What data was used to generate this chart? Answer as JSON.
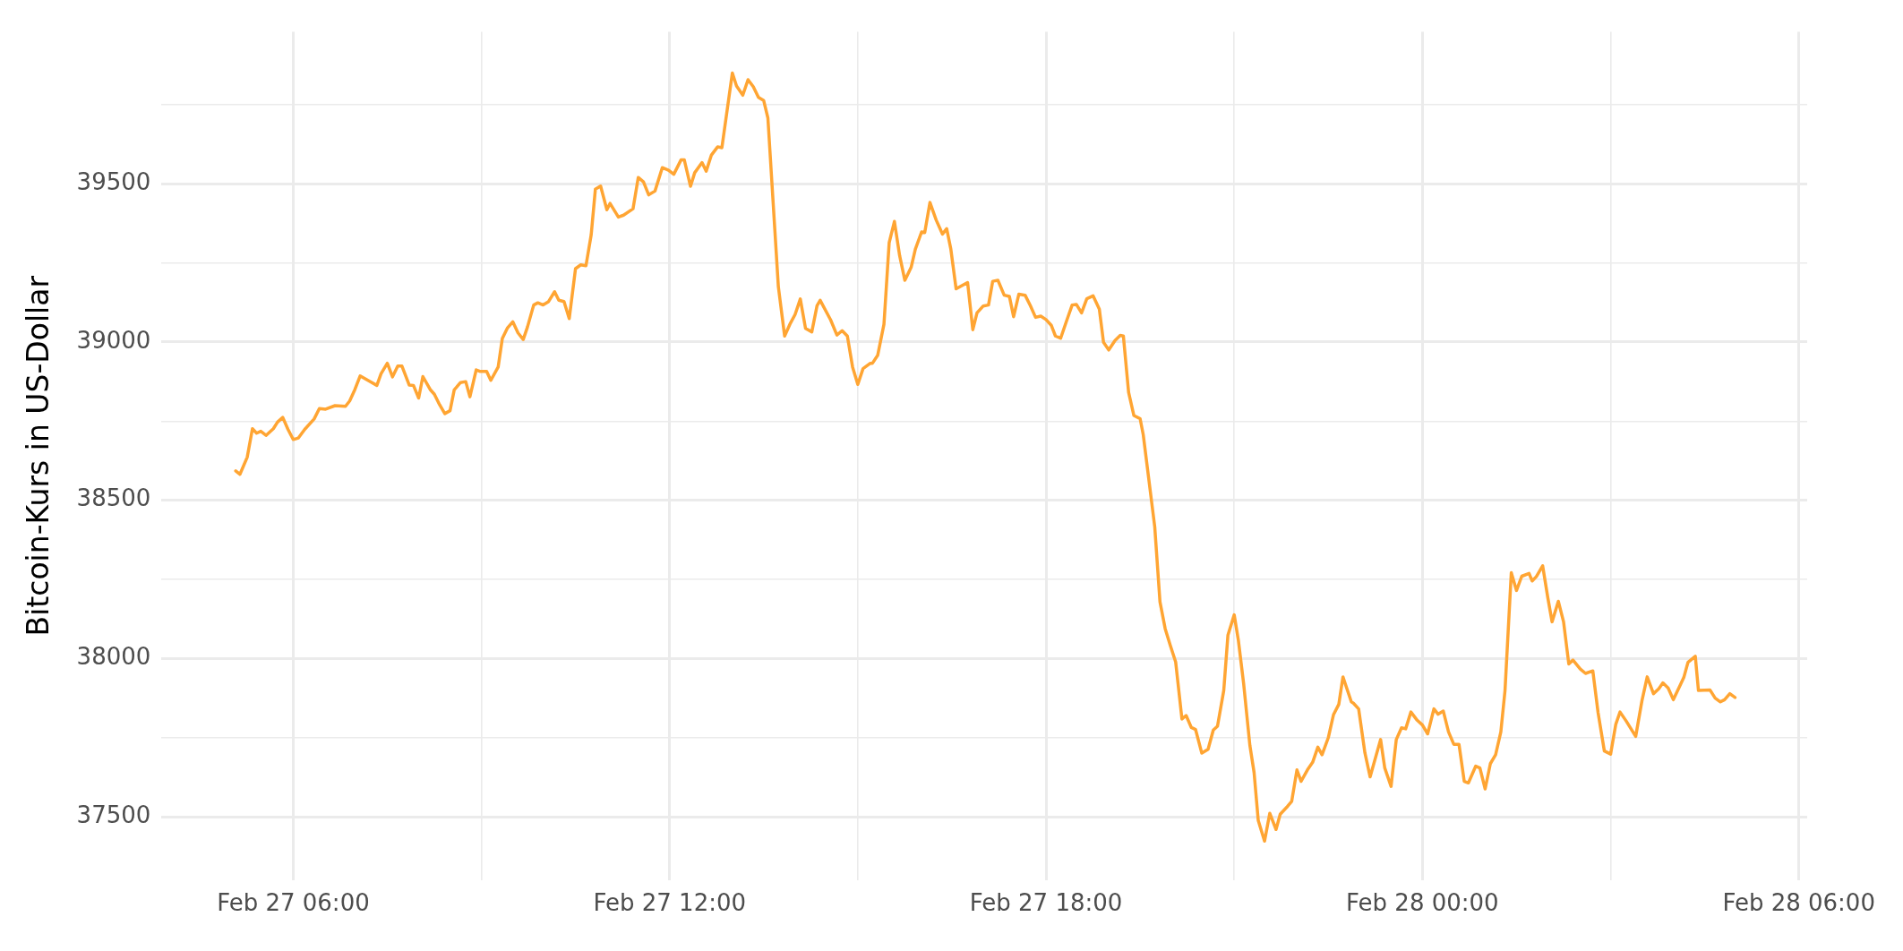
{
  "chart_data": {
    "type": "line",
    "ylabel": "Bitcoin-Kurs in US-Dollar",
    "xlim": [
      "--02-27T03:54",
      "--02-28T06:08"
    ],
    "xticks": [
      {
        "value": "--02-27T06:00",
        "label": "Feb 27 06:00"
      },
      {
        "value": "--02-27T09:00",
        "label": null
      },
      {
        "value": "--02-27T12:00",
        "label": "Feb 27 12:00"
      },
      {
        "value": "--02-27T15:00",
        "label": null
      },
      {
        "value": "--02-27T18:00",
        "label": "Feb 27 18:00"
      },
      {
        "value": "--02-27T21:00",
        "label": null
      },
      {
        "value": "--02-28T00:00",
        "label": "Feb 28 00:00"
      },
      {
        "value": "--02-28T03:00",
        "label": null
      },
      {
        "value": "--02-28T06:00",
        "label": "Feb 28 06:00"
      }
    ],
    "ylim": [
      37300,
      39980
    ],
    "yticks": [
      37500,
      {
        "value": 37750,
        "label": null
      },
      38000,
      {
        "value": 38250,
        "label": null
      },
      38500,
      {
        "value": 38750,
        "label": null
      },
      39000,
      {
        "value": 39250,
        "label": null
      },
      39500,
      {
        "value": 39750,
        "label": null
      }
    ],
    "grid": true,
    "legend": false,
    "marker": "none",
    "line_style": "solid",
    "series": [
      {
        "color": "#ffa533",
        "x": [
          "--02-27T05:05",
          "--02-27T05:09",
          "--02-27T05:16",
          "--02-27T05:21",
          "--02-27T05:25",
          "--02-27T05:29",
          "--02-27T05:34",
          "--02-27T05:41",
          "--02-27T05:45",
          "--02-27T05:50",
          "--02-27T05:55",
          "--02-27T06:00",
          "--02-27T06:05",
          "--02-27T06:11",
          "--02-27T06:20",
          "--02-27T06:25",
          "--02-27T06:31",
          "--02-27T06:40",
          "--02-27T06:50",
          "--02-27T06:54",
          "--02-27T06:59",
          "--02-27T07:04",
          "--02-27T07:13",
          "--02-27T07:20",
          "--02-27T07:24",
          "--02-27T07:30",
          "--02-27T07:35",
          "--02-27T07:40",
          "--02-27T07:44",
          "--02-27T07:51",
          "--02-27T07:55",
          "--02-27T08:00",
          "--02-27T08:04",
          "--02-27T08:11",
          "--02-27T08:15",
          "--02-27T08:20",
          "--02-27T08:25",
          "--02-27T08:30",
          "--02-27T08:34",
          "--02-27T08:40",
          "--02-27T08:45",
          "--02-27T08:49",
          "--02-27T08:55",
          "--02-27T08:59",
          "--02-27T09:05",
          "--02-27T09:09",
          "--02-27T09:16",
          "--02-27T09:20",
          "--02-27T09:25",
          "--02-27T09:30",
          "--02-27T09:35",
          "--02-27T09:40",
          "--02-27T09:44",
          "--02-27T09:50",
          "--02-27T09:54",
          "--02-27T09:59",
          "--02-27T10:04",
          "--02-27T10:10",
          "--02-27T10:14",
          "--02-27T10:19",
          "--02-27T10:24",
          "--02-27T10:30",
          "--02-27T10:35",
          "--02-27T10:40",
          "--02-27T10:45",
          "--02-27T10:49",
          "--02-27T10:54",
          "--02-27T11:00",
          "--02-27T11:03",
          "--02-27T11:11",
          "--02-27T11:16",
          "--02-27T11:25",
          "--02-27T11:30",
          "--02-27T11:35",
          "--02-27T11:40",
          "--02-27T11:46",
          "--02-27T11:53",
          "--02-27T11:59",
          "--02-27T12:04",
          "--02-27T12:11",
          "--02-27T12:14",
          "--02-27T12:20",
          "--02-27T12:24",
          "--02-27T12:31",
          "--02-27T12:35",
          "--02-27T12:40",
          "--02-27T12:46",
          "--02-27T12:50",
          "--02-27T13:00",
          "--02-27T13:04",
          "--02-27T13:10",
          "--02-27T13:15",
          "--02-27T13:20",
          "--02-27T13:25",
          "--02-27T13:30",
          "--02-27T13:34",
          "--02-27T13:44",
          "--02-27T13:50",
          "--02-27T13:55",
          "--02-27T14:00",
          "--02-27T14:05",
          "--02-27T14:10",
          "--02-27T14:16",
          "--02-27T14:21",
          "--02-27T14:24",
          "--02-27T14:34",
          "--02-27T14:40",
          "--02-27T14:45",
          "--02-27T14:50",
          "--02-27T14:55",
          "--02-27T15:00",
          "--02-27T15:05",
          "--02-27T15:12",
          "--02-27T15:14",
          "--02-27T15:19",
          "--02-27T15:25",
          "--02-27T15:30",
          "--02-27T15:35",
          "--02-27T15:40",
          "--02-27T15:45",
          "--02-27T15:51",
          "--02-27T15:55",
          "--02-27T16:01",
          "--02-27T16:04",
          "--02-27T16:09",
          "--02-27T16:15",
          "--02-27T16:21",
          "--02-27T16:25",
          "--02-27T16:29",
          "--02-27T16:34",
          "--02-27T16:45",
          "--02-27T16:50",
          "--02-27T16:54",
          "--02-27T17:00",
          "--02-27T17:05",
          "--02-27T17:09",
          "--02-27T17:14",
          "--02-27T17:20",
          "--02-27T17:25",
          "--02-27T17:29",
          "--02-27T17:34",
          "--02-27T17:40",
          "--02-27T17:45",
          "--02-27T17:50",
          "--02-27T17:55",
          "--02-27T18:00",
          "--02-27T18:05",
          "--02-27T18:09",
          "--02-27T18:14",
          "--02-27T18:20",
          "--02-27T18:25",
          "--02-27T18:29",
          "--02-27T18:34",
          "--02-27T18:39",
          "--02-27T18:45",
          "--02-27T18:51",
          "--02-27T18:55",
          "--02-27T19:00",
          "--02-27T19:06",
          "--02-27T19:11",
          "--02-27T19:14",
          "--02-27T19:19",
          "--02-27T19:24",
          "--02-27T19:30",
          "--02-27T19:33",
          "--02-27T19:44",
          "--02-27T19:49",
          "--02-27T19:54",
          "--02-27T19:59",
          "--02-27T20:04",
          "--02-27T20:10",
          "--02-27T20:14",
          "--02-27T20:19",
          "--02-27T20:23",
          "--02-27T20:29",
          "--02-27T20:35",
          "--02-27T20:40",
          "--02-27T20:44",
          "--02-27T20:50",
          "--02-27T20:54",
          "--02-27T21:00",
          "--02-27T21:04",
          "--02-27T21:09",
          "--02-27T21:15",
          "--02-27T21:19",
          "--02-27T21:23",
          "--02-27T21:29",
          "--02-27T21:34",
          "--02-27T21:40",
          "--02-27T21:44",
          "--02-27T21:51",
          "--02-27T21:55",
          "--02-27T22:00",
          "--02-27T22:04",
          "--02-27T22:10",
          "--02-27T22:15",
          "--02-27T22:20",
          "--02-27T22:24",
          "--02-27T22:30",
          "--02-27T22:35",
          "--02-27T22:40",
          "--02-27T22:44",
          "--02-27T22:52",
          "--02-27T22:54",
          "--02-27T22:59",
          "--02-27T23:05",
          "--02-27T23:10",
          "--02-27T23:20",
          "--02-27T23:24",
          "--02-27T23:30",
          "--02-27T23:35",
          "--02-27T23:40",
          "--02-27T23:44",
          "--02-27T23:49",
          "--02-27T23:55",
          "--02-28T00:00",
          "--02-28T00:05",
          "--02-28T00:11",
          "--02-28T00:15",
          "--02-28T00:20",
          "--02-28T00:25",
          "--02-28T00:30",
          "--02-28T00:35",
          "--02-28T00:40",
          "--02-28T00:44",
          "--02-28T00:51",
          "--02-28T00:55",
          "--02-28T01:00",
          "--02-28T01:05",
          "--02-28T01:10",
          "--02-28T01:15",
          "--02-28T01:19",
          "--02-28T01:25",
          "--02-28T01:30",
          "--02-28T01:35",
          "--02-28T01:42",
          "--02-28T01:45",
          "--02-28T01:49",
          "--02-28T01:55",
          "--02-28T02:00",
          "--02-28T02:04",
          "--02-28T02:10",
          "--02-28T02:15",
          "--02-28T02:20",
          "--02-28T02:24",
          "--02-28T02:31",
          "--02-28T02:36",
          "--02-28T02:43",
          "--02-28T02:48",
          "--02-28T02:54",
          "--02-28T03:00",
          "--02-28T03:05",
          "--02-28T03:09",
          "--02-28T03:15",
          "--02-28T03:24",
          "--02-28T03:30",
          "--02-28T03:35",
          "--02-28T03:41",
          "--02-28T03:46",
          "--02-28T03:50",
          "--02-28T03:55",
          "--02-28T04:00",
          "--02-28T04:10",
          "--02-28T04:14",
          "--02-28T04:21",
          "--02-28T04:24",
          "--02-28T04:35",
          "--02-28T04:40",
          "--02-28T04:45",
          "--02-28T04:49",
          "--02-28T04:54",
          "--02-28T04:59"
        ],
        "values": [
          38593,
          38582,
          38636,
          38726,
          38712,
          38718,
          38705,
          38726,
          38747,
          38762,
          38724,
          38692,
          38697,
          38724,
          38757,
          38790,
          38788,
          38799,
          38797,
          38814,
          38850,
          38893,
          38876,
          38863,
          38900,
          38933,
          38890,
          38924,
          38924,
          38864,
          38863,
          38823,
          38891,
          38850,
          38835,
          38802,
          38774,
          38783,
          38849,
          38872,
          38875,
          38827,
          38912,
          38907,
          38907,
          38879,
          38921,
          39011,
          39045,
          39064,
          39029,
          39008,
          39047,
          39117,
          39124,
          39117,
          39127,
          39159,
          39132,
          39128,
          39074,
          39232,
          39244,
          39241,
          39339,
          39483,
          39493,
          39418,
          39438,
          39395,
          39401,
          39421,
          39520,
          39506,
          39465,
          39477,
          39551,
          39543,
          39530,
          39576,
          39576,
          39492,
          39535,
          39567,
          39540,
          39591,
          39617,
          39614,
          39850,
          39809,
          39780,
          39829,
          39807,
          39773,
          39763,
          39708,
          39175,
          39019,
          39056,
          39087,
          39136,
          39043,
          39032,
          39115,
          39132,
          39070,
          39022,
          39036,
          39019,
          38921,
          38866,
          38916,
          38933,
          38933,
          38958,
          39056,
          39314,
          39381,
          39273,
          39195,
          39236,
          39293,
          39348,
          39346,
          39441,
          39385,
          39341,
          39358,
          39293,
          39168,
          39188,
          39039,
          39092,
          39114,
          39117,
          39192,
          39195,
          39148,
          39144,
          39080,
          39151,
          39148,
          39115,
          39078,
          39082,
          39071,
          39053,
          39019,
          39012,
          39070,
          39117,
          39119,
          39092,
          39137,
          39146,
          39104,
          38999,
          38975,
          39005,
          39021,
          39019,
          38841,
          38768,
          38758,
          38707,
          38416,
          38179,
          38094,
          38040,
          37989,
          37809,
          37820,
          37782,
          37776,
          37701,
          37713,
          37774,
          37786,
          37899,
          38074,
          38138,
          38057,
          37921,
          37725,
          37640,
          37488,
          37423,
          37511,
          37460,
          37508,
          37533,
          37549,
          37648,
          37612,
          37648,
          37672,
          37720,
          37696,
          37750,
          37823,
          37855,
          37942,
          37863,
          37859,
          37841,
          37702,
          37626,
          37744,
          37654,
          37596,
          37744,
          37781,
          37778,
          37831,
          37805,
          37790,
          37762,
          37841,
          37824,
          37834,
          37768,
          37729,
          37729,
          37612,
          37607,
          37660,
          37654,
          37588,
          37668,
          37696,
          37768,
          37899,
          38271,
          38215,
          38260,
          38269,
          38245,
          38259,
          38293,
          38191,
          38116,
          38181,
          38116,
          37983,
          37995,
          37967,
          37953,
          37961,
          37829,
          37708,
          37698,
          37793,
          37831,
          37802,
          37754,
          37867,
          37942,
          37889,
          37904,
          37923,
          37907,
          37870,
          37940,
          37988,
          38007,
          37899,
          37901,
          37875,
          37863,
          37870,
          37889,
          37877
        ]
      }
    ]
  }
}
